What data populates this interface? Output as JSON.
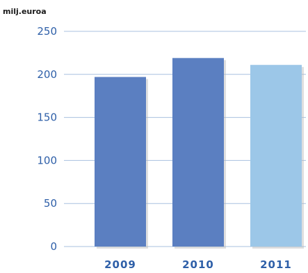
{
  "chart_data": {
    "type": "bar",
    "title": "",
    "unit_label": "milj.euroa",
    "xlabel": "",
    "ylabel": "",
    "categories": [
      "2009",
      "2010",
      "2011"
    ],
    "values": [
      197,
      219,
      211
    ],
    "ylim": [
      0,
      250
    ],
    "yticks": [
      0,
      50,
      100,
      150,
      200,
      250
    ],
    "grid": true,
    "legend": "none",
    "colors": [
      "#5b7fc1",
      "#5b7fc1",
      "#9cc7e8"
    ]
  }
}
